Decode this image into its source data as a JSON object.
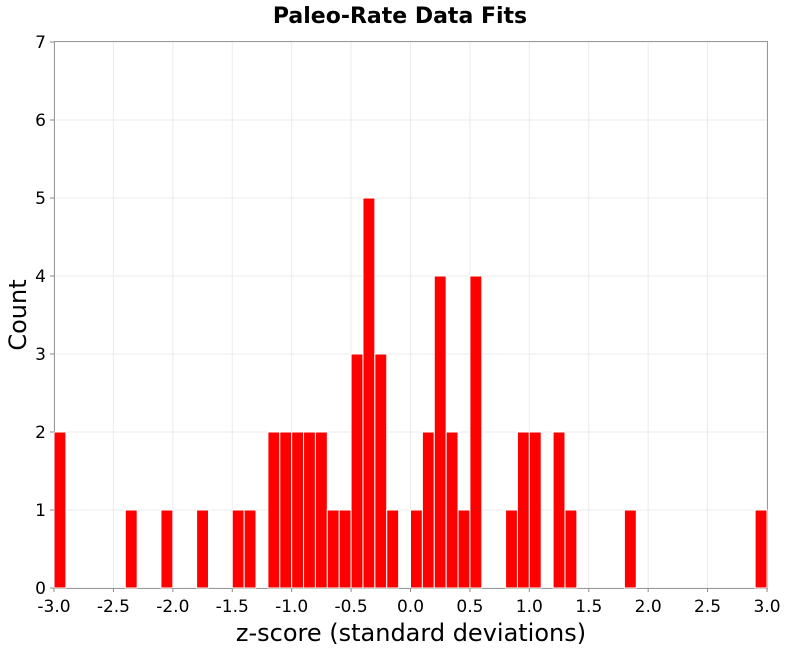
{
  "chart_data": {
    "type": "bar",
    "title": "Paleo-Rate Data Fits",
    "xlabel": "z-score (standard deviations)",
    "ylabel": "Count",
    "xlim": [
      -3.0,
      3.0
    ],
    "ylim": [
      0,
      7
    ],
    "bin_width": 0.1,
    "grid": true,
    "bar_color": "#ff0000",
    "x_ticks": [
      "-3.0",
      "-2.5",
      "-2.0",
      "-1.5",
      "-1.0",
      "-0.5",
      "0.0",
      "0.5",
      "1.0",
      "1.5",
      "2.0",
      "2.5",
      "3.0"
    ],
    "y_ticks": [
      "0",
      "1",
      "2",
      "3",
      "4",
      "5",
      "6",
      "7"
    ],
    "bins": [
      {
        "x": -3.0,
        "count": 2
      },
      {
        "x": -2.4,
        "count": 1
      },
      {
        "x": -2.1,
        "count": 1
      },
      {
        "x": -1.8,
        "count": 1
      },
      {
        "x": -1.5,
        "count": 1
      },
      {
        "x": -1.4,
        "count": 1
      },
      {
        "x": -1.2,
        "count": 2
      },
      {
        "x": -1.1,
        "count": 2
      },
      {
        "x": -1.0,
        "count": 2
      },
      {
        "x": -0.9,
        "count": 2
      },
      {
        "x": -0.8,
        "count": 2
      },
      {
        "x": -0.7,
        "count": 1
      },
      {
        "x": -0.6,
        "count": 1
      },
      {
        "x": -0.5,
        "count": 3
      },
      {
        "x": -0.4,
        "count": 5
      },
      {
        "x": -0.3,
        "count": 3
      },
      {
        "x": -0.2,
        "count": 1
      },
      {
        "x": 0.0,
        "count": 1
      },
      {
        "x": 0.1,
        "count": 2
      },
      {
        "x": 0.2,
        "count": 4
      },
      {
        "x": 0.3,
        "count": 2
      },
      {
        "x": 0.4,
        "count": 1
      },
      {
        "x": 0.5,
        "count": 4
      },
      {
        "x": 0.8,
        "count": 1
      },
      {
        "x": 0.9,
        "count": 2
      },
      {
        "x": 1.0,
        "count": 2
      },
      {
        "x": 1.2,
        "count": 2
      },
      {
        "x": 1.3,
        "count": 1
      },
      {
        "x": 1.8,
        "count": 1
      },
      {
        "x": 2.9,
        "count": 1
      }
    ]
  }
}
